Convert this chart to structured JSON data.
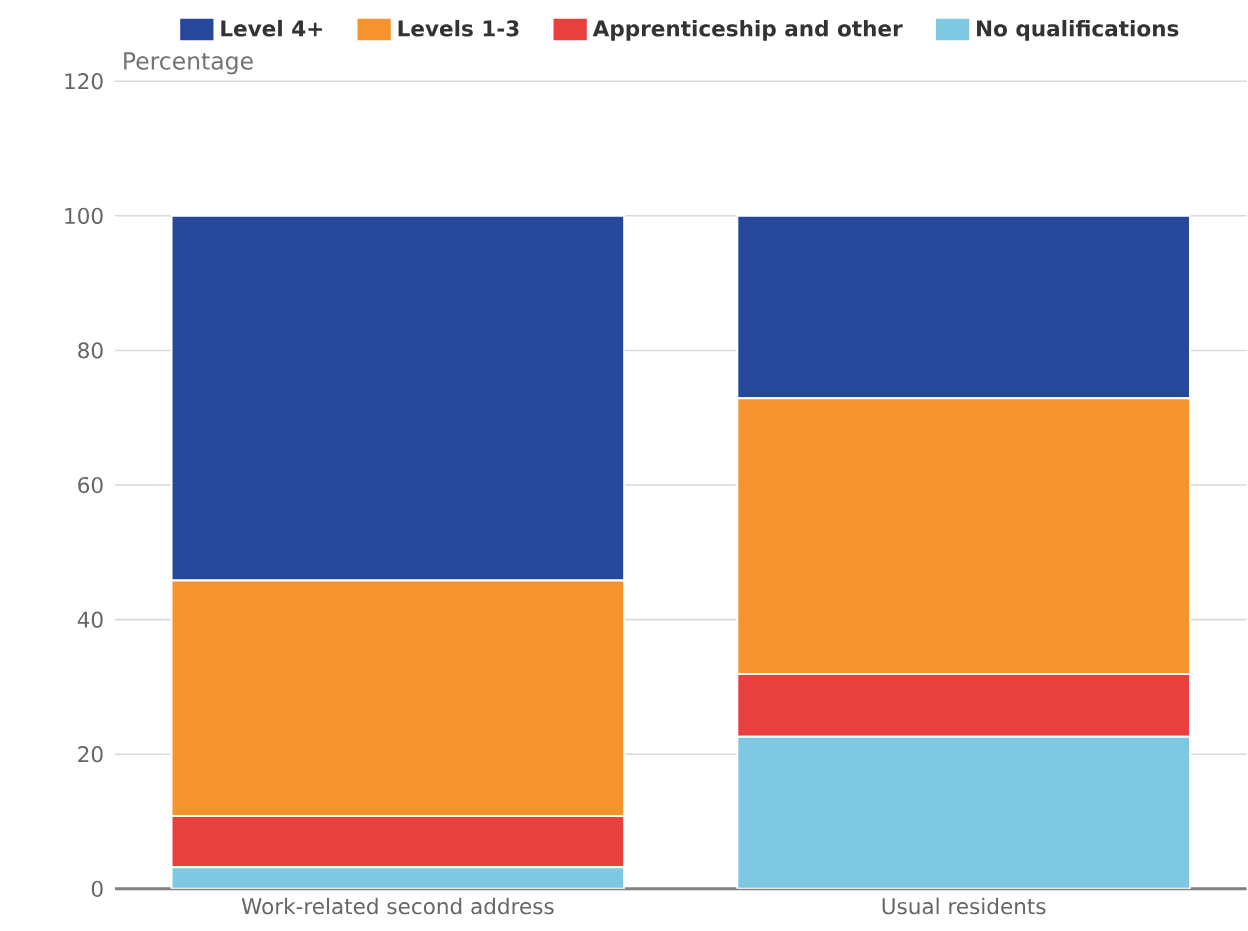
{
  "chart_data": {
    "type": "bar",
    "stacked": true,
    "ylabel": "Percentage",
    "categories": [
      "Work-related second address",
      "Usual residents"
    ],
    "series": [
      {
        "name": "No qualifications",
        "color": "#7ec8e1",
        "values": [
          3.2,
          22.6
        ]
      },
      {
        "name": "Apprenticeship and other",
        "color": "#e83f3f",
        "values": [
          7.6,
          9.3
        ]
      },
      {
        "name": "Levels 1-3",
        "color": "#f5942e",
        "values": [
          35.0,
          41.0
        ]
      },
      {
        "name": "Level 4+",
        "color": "#27489a",
        "values": [
          54.2,
          27.1
        ]
      }
    ],
    "ylim": [
      0,
      120
    ],
    "yticks": [
      0,
      20,
      40,
      60,
      80,
      100,
      120
    ],
    "grid": "y",
    "legend": "top"
  }
}
